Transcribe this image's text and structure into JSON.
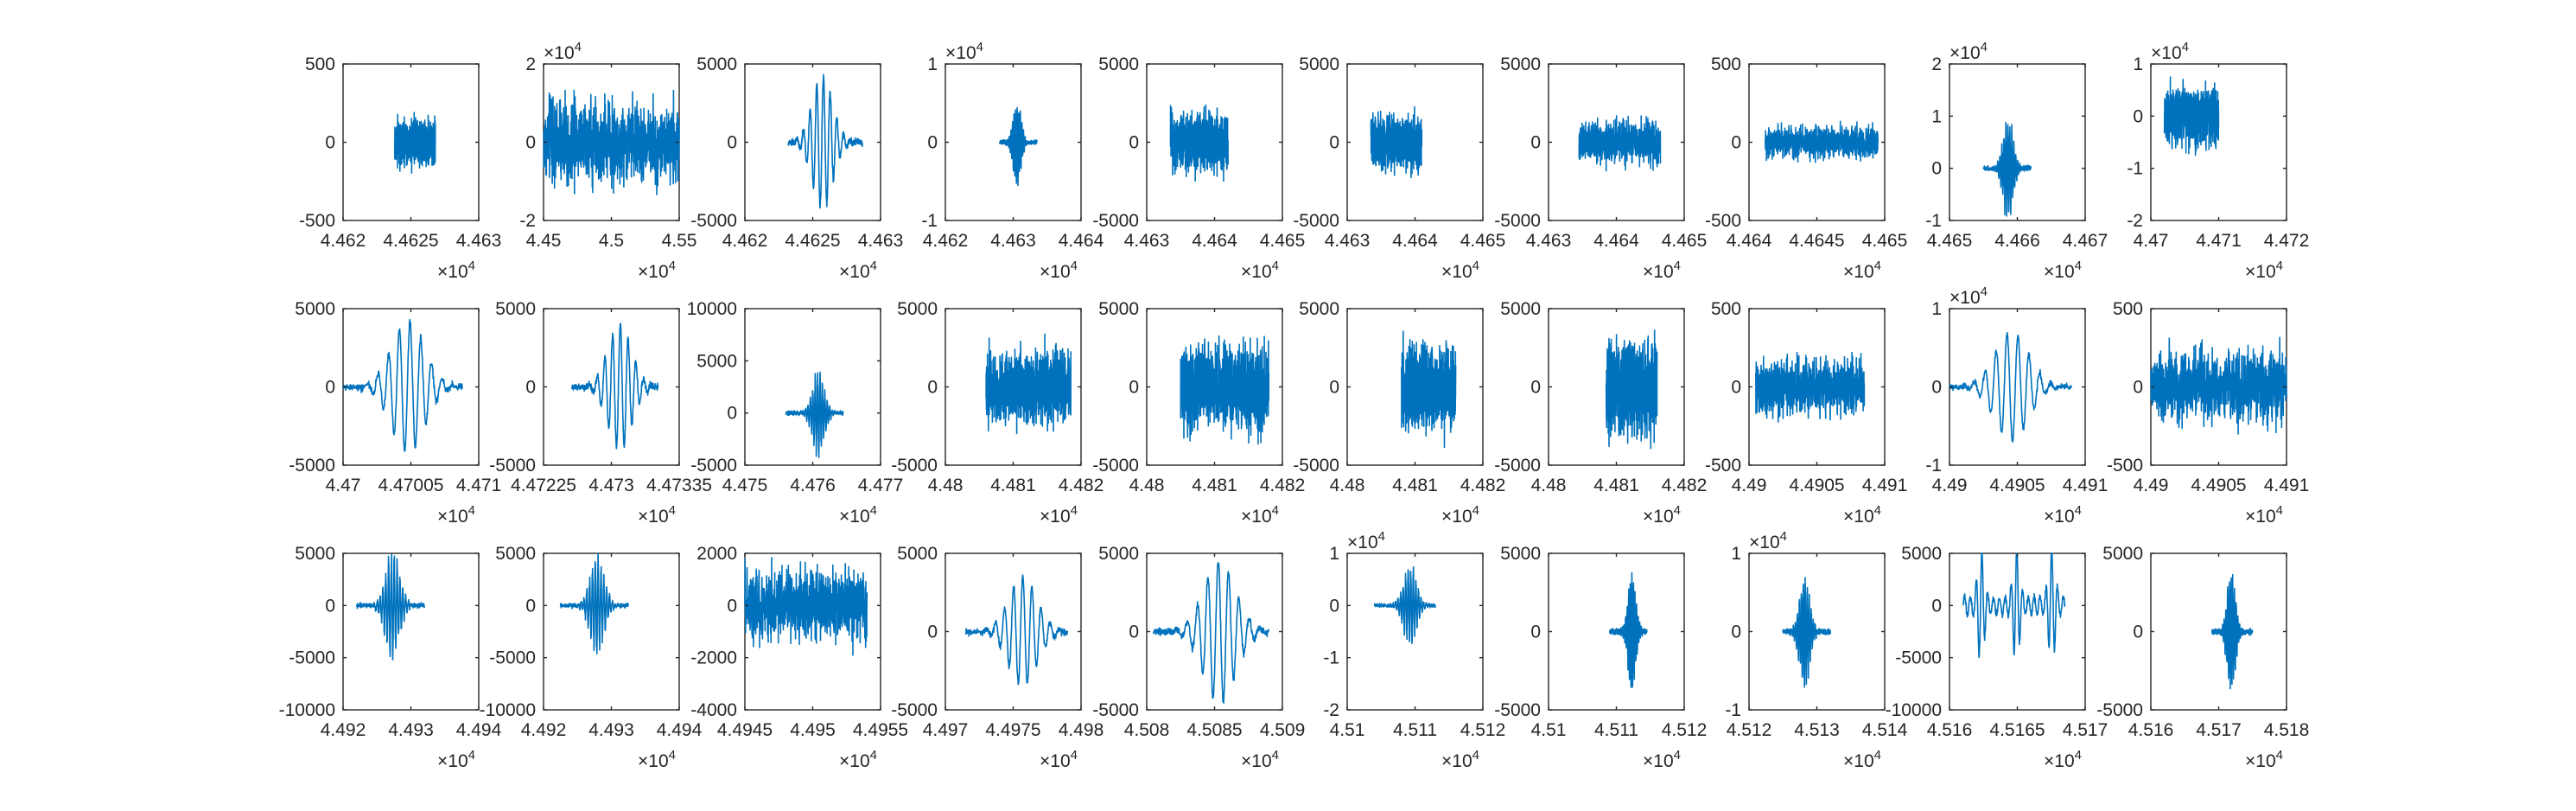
{
  "chart_data": [
    {
      "type": "line",
      "title": "",
      "xlabel": "",
      "ylabel": "",
      "x_ticks": [
        "4.462",
        "4.4625",
        "4.463"
      ],
      "y_ticks": [
        "-500",
        "0",
        "500"
      ],
      "x_exponent": "4",
      "y_exponent": "",
      "xlim": [
        44620,
        44630
      ],
      "ylim": [
        -500,
        500
      ],
      "signal": {
        "x_range": [
          44623.8,
          44626.8
        ],
        "amplitude": 230,
        "style": "noise"
      },
      "series": [
        {
          "color": "#0072BD"
        }
      ]
    },
    {
      "type": "line",
      "title": "",
      "xlabel": "",
      "ylabel": "",
      "x_ticks": [
        "4.45",
        "4.5",
        "4.55"
      ],
      "y_ticks": [
        "-2",
        "0",
        "2"
      ],
      "x_exponent": "4",
      "y_exponent": "4",
      "xlim": [
        44500,
        45500
      ],
      "ylim": [
        -20000,
        20000
      ],
      "signal": {
        "x_range": [
          44500,
          45500
        ],
        "amplitude": 18000,
        "style": "noise"
      },
      "series": [
        {
          "color": "#0072BD"
        }
      ]
    },
    {
      "type": "line",
      "title": "",
      "xlabel": "",
      "ylabel": "",
      "x_ticks": [
        "4.462",
        "4.4625",
        "4.463"
      ],
      "y_ticks": [
        "-5000",
        "0",
        "5000"
      ],
      "x_exponent": "4",
      "y_exponent": "",
      "xlim": [
        44620,
        44630
      ],
      "ylim": [
        -5000,
        5000
      ],
      "signal": {
        "x_range": [
          44623.2,
          44628.7
        ],
        "amplitude": 4200,
        "style": "wave"
      },
      "series": [
        {
          "color": "#0072BD"
        }
      ]
    },
    {
      "type": "line",
      "title": "",
      "xlabel": "",
      "ylabel": "",
      "x_ticks": [
        "4.462",
        "4.463",
        "4.464"
      ],
      "y_ticks": [
        "-1",
        "0",
        "1"
      ],
      "x_exponent": "4",
      "y_exponent": "4",
      "xlim": [
        44620,
        44640
      ],
      "ylim": [
        -10000,
        10000
      ],
      "signal": {
        "x_range": [
          44628,
          44633.5
        ],
        "amplitude": 6000,
        "style": "burst"
      },
      "series": [
        {
          "color": "#0072BD"
        }
      ]
    },
    {
      "type": "line",
      "title": "",
      "xlabel": "",
      "ylabel": "",
      "x_ticks": [
        "4.463",
        "4.464",
        "4.465"
      ],
      "y_ticks": [
        "-5000",
        "0",
        "5000"
      ],
      "x_exponent": "4",
      "y_exponent": "",
      "xlim": [
        44630,
        44650
      ],
      "ylim": [
        -5000,
        5000
      ],
      "signal": {
        "x_range": [
          44633.5,
          44642
        ],
        "amplitude": 3000,
        "style": "noise"
      },
      "series": [
        {
          "color": "#0072BD"
        }
      ]
    },
    {
      "type": "line",
      "title": "",
      "xlabel": "",
      "ylabel": "",
      "x_ticks": [
        "4.463",
        "4.464",
        "4.465"
      ],
      "y_ticks": [
        "-5000",
        "0",
        "5000"
      ],
      "x_exponent": "4",
      "y_exponent": "",
      "xlim": [
        44630,
        44650
      ],
      "ylim": [
        -5000,
        5000
      ],
      "signal": {
        "x_range": [
          44633.5,
          44641
        ],
        "amplitude": 2800,
        "style": "noise"
      },
      "series": [
        {
          "color": "#0072BD"
        }
      ]
    },
    {
      "type": "line",
      "title": "",
      "xlabel": "",
      "ylabel": "",
      "x_ticks": [
        "4.463",
        "4.464",
        "4.465"
      ],
      "y_ticks": [
        "-5000",
        "0",
        "5000"
      ],
      "x_exponent": "4",
      "y_exponent": "",
      "xlim": [
        44630,
        44650
      ],
      "ylim": [
        -5000,
        5000
      ],
      "signal": {
        "x_range": [
          44634.5,
          44646.5
        ],
        "amplitude": 2200,
        "style": "noise"
      },
      "series": [
        {
          "color": "#0072BD"
        }
      ]
    },
    {
      "type": "line",
      "title": "",
      "xlabel": "",
      "ylabel": "",
      "x_ticks": [
        "4.464",
        "4.4645",
        "4.465"
      ],
      "y_ticks": [
        "-500",
        "0",
        "500"
      ],
      "x_exponent": "4",
      "y_exponent": "",
      "xlim": [
        44640,
        44650
      ],
      "ylim": [
        -500,
        500
      ],
      "signal": {
        "x_range": [
          44641.2,
          44649.5
        ],
        "amplitude": 170,
        "style": "noise"
      },
      "series": [
        {
          "color": "#0072BD"
        }
      ]
    },
    {
      "type": "line",
      "title": "",
      "xlabel": "",
      "ylabel": "",
      "x_ticks": [
        "4.465",
        "4.466",
        "4.467"
      ],
      "y_ticks": [
        "-1",
        "0",
        "1",
        "2"
      ],
      "x_exponent": "4",
      "y_exponent": "4",
      "xlim": [
        44650,
        44670
      ],
      "ylim": [
        -10000,
        20000
      ],
      "signal": {
        "x_range": [
          44655,
          44662
        ],
        "amplitude": 11000,
        "style": "burst"
      },
      "series": [
        {
          "color": "#0072BD"
        }
      ]
    },
    {
      "type": "line",
      "title": "",
      "xlabel": "",
      "ylabel": "",
      "x_ticks": [
        "4.47",
        "4.471",
        "4.472"
      ],
      "y_ticks": [
        "-2",
        "-1",
        "0",
        "1"
      ],
      "x_exponent": "4",
      "y_exponent": "4",
      "xlim": [
        44700,
        44720
      ],
      "ylim": [
        -20000,
        10000
      ],
      "signal": {
        "x_range": [
          44702,
          44710
        ],
        "amplitude": 9000,
        "style": "noise"
      },
      "series": [
        {
          "color": "#0072BD"
        }
      ]
    },
    {
      "type": "line",
      "title": "",
      "xlabel": "",
      "ylabel": "",
      "x_ticks": [
        "4.47",
        "4.47005",
        "4.471"
      ],
      "y_ticks": [
        "-5000",
        "0",
        "5000"
      ],
      "x_exponent": "4",
      "y_exponent": "",
      "xlim": [
        44700,
        44710
      ],
      "ylim": [
        -5000,
        5000
      ],
      "signal": {
        "x_range": [
          44700,
          44708.8
        ],
        "amplitude": 4200,
        "style": "wave"
      },
      "series": [
        {
          "color": "#0072BD"
        }
      ]
    },
    {
      "type": "line",
      "title": "",
      "xlabel": "",
      "ylabel": "",
      "x_ticks": [
        "4.47225",
        "4.473",
        "4.47335"
      ],
      "y_ticks": [
        "-5000",
        "0",
        "5000"
      ],
      "x_exponent": "4",
      "y_exponent": "",
      "xlim": [
        44722.5,
        44733.5
      ],
      "ylim": [
        -5000,
        5000
      ],
      "signal": {
        "x_range": [
          44724.8,
          44731.8
        ],
        "amplitude": 4000,
        "style": "wave"
      },
      "series": [
        {
          "color": "#0072BD"
        }
      ]
    },
    {
      "type": "line",
      "title": "",
      "xlabel": "",
      "ylabel": "",
      "x_ticks": [
        "4.475",
        "4.476",
        "4.477"
      ],
      "y_ticks": [
        "-5000",
        "0",
        "5000",
        "10000"
      ],
      "x_exponent": "4",
      "y_exponent": "",
      "xlim": [
        44750,
        44770
      ],
      "ylim": [
        -5000,
        10000
      ],
      "signal": {
        "x_range": [
          44756,
          44764.5
        ],
        "amplitude": 4500,
        "style": "burst"
      },
      "series": [
        {
          "color": "#0072BD"
        }
      ]
    },
    {
      "type": "line",
      "title": "",
      "xlabel": "",
      "ylabel": "",
      "x_ticks": [
        "4.48",
        "4.481",
        "4.482"
      ],
      "y_ticks": [
        "-5000",
        "0",
        "5000"
      ],
      "x_exponent": "4",
      "y_exponent": "",
      "xlim": [
        44800,
        44820
      ],
      "ylim": [
        -5000,
        5000
      ],
      "signal": {
        "x_range": [
          44806,
          44818.5
        ],
        "amplitude": 4000,
        "style": "noise"
      },
      "series": [
        {
          "color": "#0072BD"
        }
      ]
    },
    {
      "type": "line",
      "title": "",
      "xlabel": "",
      "ylabel": "",
      "x_ticks": [
        "4.48",
        "4.481",
        "4.482"
      ],
      "y_ticks": [
        "-5000",
        "0",
        "5000"
      ],
      "x_exponent": "4",
      "y_exponent": "",
      "xlim": [
        44800,
        44820
      ],
      "ylim": [
        -5000,
        5000
      ],
      "signal": {
        "x_range": [
          44805,
          44818
        ],
        "amplitude": 4600,
        "style": "noise"
      },
      "series": [
        {
          "color": "#0072BD"
        }
      ]
    },
    {
      "type": "line",
      "title": "",
      "xlabel": "",
      "ylabel": "",
      "x_ticks": [
        "4.48",
        "4.481",
        "4.482"
      ],
      "y_ticks": [
        "-5000",
        "0",
        "5000"
      ],
      "x_exponent": "4",
      "y_exponent": "",
      "xlim": [
        44800,
        44820
      ],
      "ylim": [
        -5000,
        5000
      ],
      "signal": {
        "x_range": [
          44808,
          44816
        ],
        "amplitude": 4200,
        "style": "noise"
      },
      "series": [
        {
          "color": "#0072BD"
        }
      ]
    },
    {
      "type": "line",
      "title": "",
      "xlabel": "",
      "ylabel": "",
      "x_ticks": [
        "4.48",
        "4.481",
        "4.482"
      ],
      "y_ticks": [
        "-5000",
        "0",
        "5000"
      ],
      "x_exponent": "4",
      "y_exponent": "",
      "xlim": [
        44800,
        44820
      ],
      "ylim": [
        -5000,
        5000
      ],
      "signal": {
        "x_range": [
          44808.5,
          44816
        ],
        "amplitude": 4800,
        "style": "noise"
      },
      "series": [
        {
          "color": "#0072BD"
        }
      ]
    },
    {
      "type": "line",
      "title": "",
      "xlabel": "",
      "ylabel": "",
      "x_ticks": [
        "4.49",
        "4.4905",
        "4.491"
      ],
      "y_ticks": [
        "-500",
        "0",
        "500"
      ],
      "x_exponent": "4",
      "y_exponent": "",
      "xlim": [
        44900,
        44910
      ],
      "ylim": [
        -500,
        500
      ],
      "signal": {
        "x_range": [
          44900.5,
          44908.5
        ],
        "amplitude": 300,
        "style": "noise"
      },
      "series": [
        {
          "color": "#0072BD"
        }
      ]
    },
    {
      "type": "line",
      "title": "",
      "xlabel": "",
      "ylabel": "",
      "x_ticks": [
        "4.49",
        "4.4905",
        "4.491"
      ],
      "y_ticks": [
        "-1",
        "0",
        "1"
      ],
      "x_exponent": "4",
      "y_exponent": "4",
      "xlim": [
        44900,
        44910
      ],
      "ylim": [
        -10000,
        10000
      ],
      "signal": {
        "x_range": [
          44900,
          44909
        ],
        "amplitude": 7000,
        "style": "wave"
      },
      "series": [
        {
          "color": "#0072BD"
        }
      ]
    },
    {
      "type": "line",
      "title": "",
      "xlabel": "",
      "ylabel": "",
      "x_ticks": [
        "4.49",
        "4.4905",
        "4.491"
      ],
      "y_ticks": [
        "-500",
        "0",
        "500"
      ],
      "x_exponent": "4",
      "y_exponent": "",
      "xlim": [
        44900,
        44910
      ],
      "ylim": [
        -500,
        500
      ],
      "signal": {
        "x_range": [
          44900,
          44910
        ],
        "amplitude": 380,
        "style": "noise"
      },
      "series": [
        {
          "color": "#0072BD"
        }
      ]
    },
    {
      "type": "line",
      "title": "",
      "xlabel": "",
      "ylabel": "",
      "x_ticks": [
        "4.492",
        "4.493",
        "4.494"
      ],
      "y_ticks": [
        "-10000",
        "-5000",
        "0",
        "5000"
      ],
      "x_exponent": "4",
      "y_exponent": "",
      "xlim": [
        44920,
        44940
      ],
      "ylim": [
        -10000,
        5000
      ],
      "signal": {
        "x_range": [
          44922,
          44932
        ],
        "amplitude": 5500,
        "style": "burst"
      },
      "series": [
        {
          "color": "#0072BD"
        }
      ]
    },
    {
      "type": "line",
      "title": "",
      "xlabel": "",
      "ylabel": "",
      "x_ticks": [
        "4.492",
        "4.493",
        "4.494"
      ],
      "y_ticks": [
        "-10000",
        "-5000",
        "0",
        "5000"
      ],
      "x_exponent": "4",
      "y_exponent": "",
      "xlim": [
        44920,
        44940
      ],
      "ylim": [
        -10000,
        5000
      ],
      "signal": {
        "x_range": [
          44922.5,
          44932.5
        ],
        "amplitude": 5000,
        "style": "burst"
      },
      "series": [
        {
          "color": "#0072BD"
        }
      ]
    },
    {
      "type": "line",
      "title": "",
      "xlabel": "",
      "ylabel": "",
      "x_ticks": [
        "4.4945",
        "4.495",
        "4.4955"
      ],
      "y_ticks": [
        "-4000",
        "-2000",
        "0",
        "2000"
      ],
      "x_exponent": "4",
      "y_exponent": "",
      "xlim": [
        44945,
        44955
      ],
      "ylim": [
        -4000,
        2000
      ],
      "signal": {
        "x_range": [
          44945,
          44954
        ],
        "amplitude": 2200,
        "style": "noise"
      },
      "series": [
        {
          "color": "#0072BD"
        }
      ]
    },
    {
      "type": "line",
      "title": "",
      "xlabel": "",
      "ylabel": "",
      "x_ticks": [
        "4.497",
        "4.4975",
        "4.498"
      ],
      "y_ticks": [
        "-5000",
        "0",
        "5000"
      ],
      "x_exponent": "4",
      "y_exponent": "",
      "xlim": [
        44970,
        44980
      ],
      "ylim": [
        -5000,
        5000
      ],
      "signal": {
        "x_range": [
          44971.5,
          44979
        ],
        "amplitude": 3500,
        "style": "wave"
      },
      "series": [
        {
          "color": "#0072BD"
        }
      ]
    },
    {
      "type": "line",
      "title": "",
      "xlabel": "",
      "ylabel": "",
      "x_ticks": [
        "4.508",
        "4.5085",
        "4.509"
      ],
      "y_ticks": [
        "-5000",
        "0",
        "5000"
      ],
      "x_exponent": "4",
      "y_exponent": "",
      "xlim": [
        45080,
        45090
      ],
      "ylim": [
        -5000,
        5000
      ],
      "signal": {
        "x_range": [
          45080.5,
          45089
        ],
        "amplitude": 4500,
        "style": "wave"
      },
      "series": [
        {
          "color": "#0072BD"
        }
      ]
    },
    {
      "type": "line",
      "title": "",
      "xlabel": "",
      "ylabel": "",
      "x_ticks": [
        "4.51",
        "4.511",
        "4.512"
      ],
      "y_ticks": [
        "-2",
        "-1",
        "0",
        "1"
      ],
      "x_exponent": "4",
      "y_exponent": "4",
      "xlim": [
        45100,
        45120
      ],
      "ylim": [
        -20000,
        10000
      ],
      "signal": {
        "x_range": [
          45104,
          45113
        ],
        "amplitude": 8500,
        "style": "burst"
      },
      "series": [
        {
          "color": "#0072BD"
        }
      ]
    },
    {
      "type": "line",
      "title": "",
      "xlabel": "",
      "ylabel": "",
      "x_ticks": [
        "4.51",
        "4.511",
        "4.512"
      ],
      "y_ticks": [
        "-5000",
        "0",
        "5000"
      ],
      "x_exponent": "4",
      "y_exponent": "",
      "xlim": [
        45100,
        45120
      ],
      "ylim": [
        -5000,
        5000
      ],
      "signal": {
        "x_range": [
          45109,
          45114.5
        ],
        "amplitude": 4200,
        "style": "burst"
      },
      "series": [
        {
          "color": "#0072BD"
        }
      ]
    },
    {
      "type": "line",
      "title": "",
      "xlabel": "",
      "ylabel": "",
      "x_ticks": [
        "4.512",
        "4.513",
        "4.514"
      ],
      "y_ticks": [
        "-1",
        "0",
        "1"
      ],
      "x_exponent": "4",
      "y_exponent": "4",
      "xlim": [
        45120,
        45140
      ],
      "ylim": [
        -10000,
        10000
      ],
      "signal": {
        "x_range": [
          45125,
          45132
        ],
        "amplitude": 8000,
        "style": "burst"
      },
      "series": [
        {
          "color": "#0072BD"
        }
      ]
    },
    {
      "type": "line",
      "title": "",
      "xlabel": "",
      "ylabel": "",
      "x_ticks": [
        "4.516",
        "4.5165",
        "4.517"
      ],
      "y_ticks": [
        "-10000",
        "-5000",
        "0",
        "5000"
      ],
      "x_exponent": "4",
      "y_exponent": "",
      "xlim": [
        45160,
        45170
      ],
      "ylim": [
        -10000,
        5000
      ],
      "signal": {
        "x_range": [
          45161,
          45168.5
        ],
        "amplitude": 5500,
        "style": "spikes"
      },
      "series": [
        {
          "color": "#0072BD"
        }
      ]
    },
    {
      "type": "line",
      "title": "",
      "xlabel": "",
      "ylabel": "",
      "x_ticks": [
        "4.516",
        "4.517",
        "4.518"
      ],
      "y_ticks": [
        "-5000",
        "0",
        "5000"
      ],
      "x_exponent": "4",
      "y_exponent": "",
      "xlim": [
        45160,
        45180
      ],
      "ylim": [
        -5000,
        5000
      ],
      "signal": {
        "x_range": [
          45169,
          45175
        ],
        "amplitude": 4000,
        "style": "burst"
      },
      "series": [
        {
          "color": "#0072BD"
        }
      ]
    }
  ]
}
